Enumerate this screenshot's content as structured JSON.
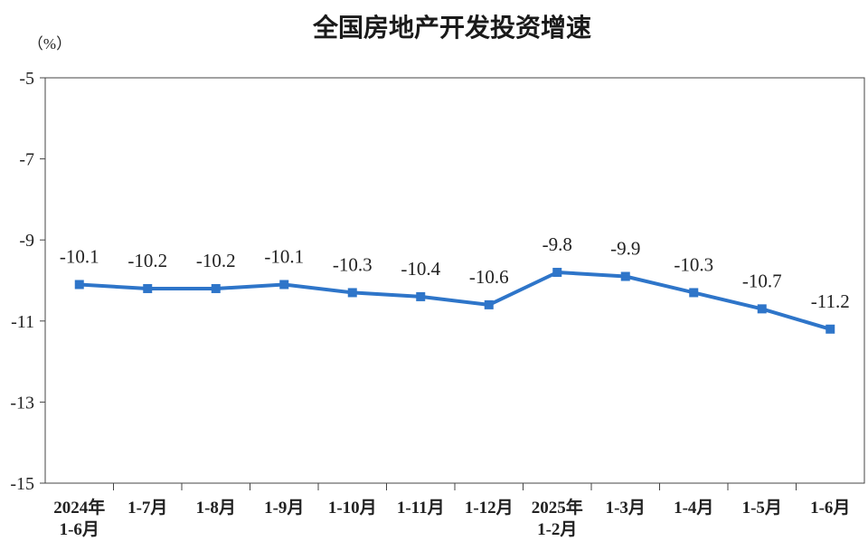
{
  "chart_data": {
    "type": "line",
    "title": "全国房地产开发投资增速",
    "unit": "（%）",
    "xlabel": "",
    "ylabel": "",
    "ylim": [
      -15,
      -5
    ],
    "yticks": [
      "-5",
      "-7",
      "-9",
      "-11",
      "-13",
      "-15"
    ],
    "yticks_values": [
      -5,
      -7,
      -9,
      -11,
      -13,
      -15
    ],
    "grid": false,
    "categories": [
      [
        "2024年",
        "1-6月"
      ],
      [
        "1-7月"
      ],
      [
        "1-8月"
      ],
      [
        "1-9月"
      ],
      [
        "1-10月"
      ],
      [
        "1-11月"
      ],
      [
        "1-12月"
      ],
      [
        "2025年",
        "1-2月"
      ],
      [
        "1-3月"
      ],
      [
        "1-4月"
      ],
      [
        "1-5月"
      ],
      [
        "1-6月"
      ]
    ],
    "series": [
      {
        "values": [
          -10.1,
          -10.2,
          -10.2,
          -10.1,
          -10.3,
          -10.4,
          -10.6,
          -9.8,
          -9.9,
          -10.3,
          -10.7,
          -11.2
        ],
        "labels": [
          "-10.1",
          "-10.2",
          "-10.2",
          "-10.1",
          "-10.3",
          "-10.4",
          "-10.6",
          "-9.8",
          "-9.9",
          "-10.3",
          "-10.7",
          "-11.2"
        ],
        "color": "#2e75c9"
      }
    ]
  }
}
